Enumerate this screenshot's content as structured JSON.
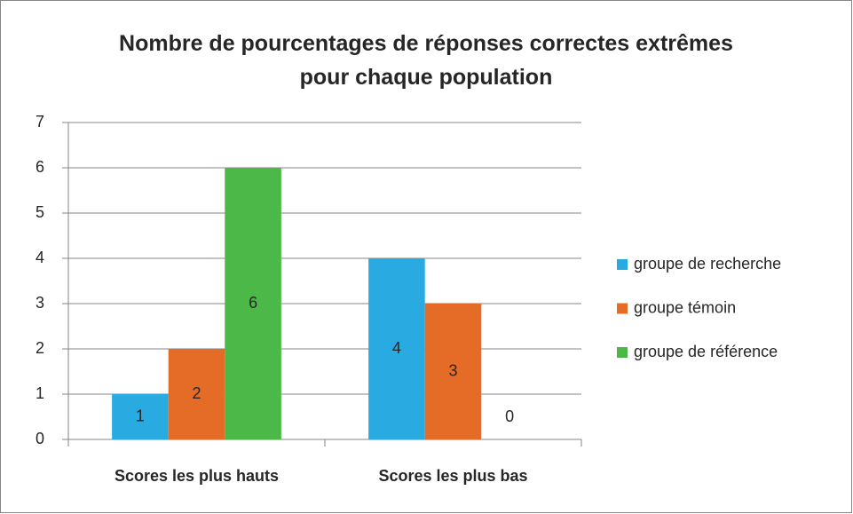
{
  "chart_data": {
    "type": "bar",
    "title": "Nombre de pourcentages de réponses correctes extrêmes pour chaque population",
    "categories": [
      "Scores les plus hauts",
      "Scores les plus bas"
    ],
    "series": [
      {
        "name": "groupe de recherche",
        "color": "#29abe2",
        "values": [
          1,
          4
        ]
      },
      {
        "name": "groupe témoin",
        "color": "#e46c27",
        "values": [
          2,
          3
        ]
      },
      {
        "name": "groupe de référence",
        "color": "#4cb848",
        "values": [
          6,
          0
        ]
      }
    ],
    "ylim": [
      0,
      7
    ],
    "yticks": [
      0,
      1,
      2,
      3,
      4,
      5,
      6,
      7
    ],
    "grid": true,
    "legend": "right",
    "data_labels": true
  }
}
